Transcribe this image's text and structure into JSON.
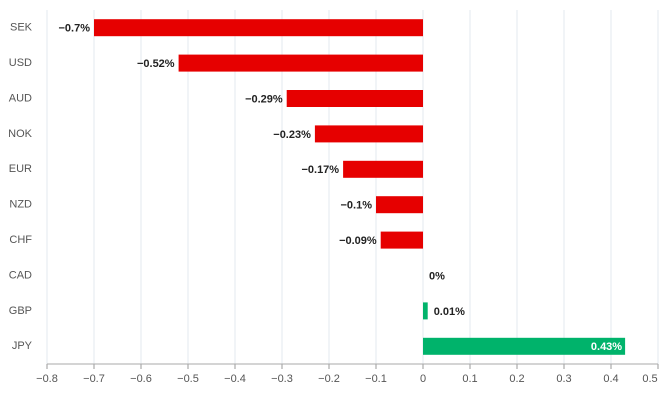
{
  "chart_data": {
    "type": "hbar",
    "categories": [
      "SEK",
      "USD",
      "AUD",
      "NOK",
      "EUR",
      "NZD",
      "CHF",
      "CAD",
      "GBP",
      "JPY"
    ],
    "values": [
      -0.7,
      -0.52,
      -0.29,
      -0.23,
      -0.17,
      -0.1,
      -0.09,
      0,
      0.01,
      0.43
    ],
    "value_labels": [
      "−0.7%",
      "−0.52%",
      "−0.29%",
      "−0.23%",
      "−0.17%",
      "−0.1%",
      "−0.09%",
      "0%",
      "0.01%",
      "0.43%"
    ],
    "negative_color": "#e60000",
    "positive_color": "#00b36b",
    "xlim": [
      -0.8,
      0.5
    ],
    "xticks": [
      {
        "value": -0.8,
        "label": "−0.8"
      },
      {
        "value": -0.7,
        "label": "−0.7"
      },
      {
        "value": -0.6,
        "label": "−0.6"
      },
      {
        "value": -0.5,
        "label": "−0.5"
      },
      {
        "value": -0.4,
        "label": "−0.4"
      },
      {
        "value": -0.3,
        "label": "−0.3"
      },
      {
        "value": -0.2,
        "label": "−0.2"
      },
      {
        "value": -0.1,
        "label": "−0.1"
      },
      0,
      0.1,
      0.2,
      0.3,
      0.4,
      0.5
    ],
    "grid": true
  }
}
